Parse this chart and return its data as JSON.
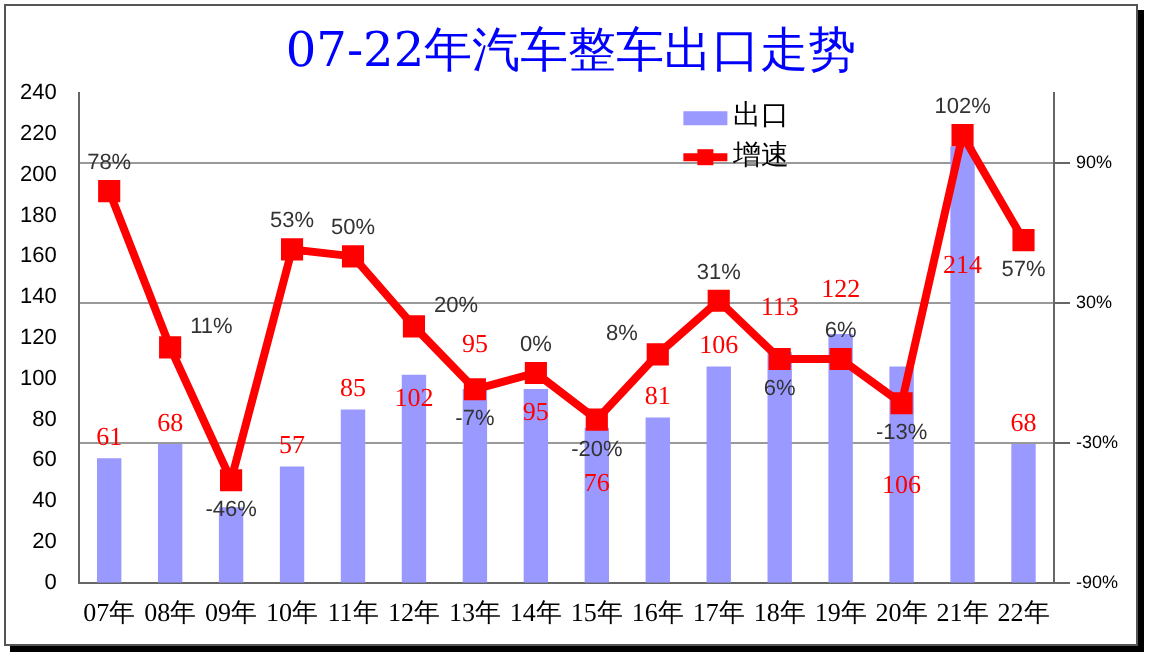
{
  "chart_data": {
    "type": "bar",
    "title": "07-22年汽车整车出口走势",
    "categories": [
      "07年",
      "08年",
      "09年",
      "10年",
      "11年",
      "12年",
      "13年",
      "14年",
      "15年",
      "16年",
      "17年",
      "18年",
      "19年",
      "20年",
      "21年",
      "22年"
    ],
    "series": [
      {
        "name": "出口",
        "color": "#9999ff",
        "values": [
          61,
          68,
          37,
          57,
          85,
          102,
          95,
          95,
          76,
          81,
          106,
          113,
          122,
          106,
          214,
          68
        ],
        "value_labels": [
          "61",
          "68",
          null,
          "57",
          "85",
          "102",
          "95",
          "95",
          "76",
          "81",
          "106",
          "113",
          "122",
          "106",
          "214",
          "68"
        ]
      },
      {
        "name": "增速",
        "type": "line",
        "axis": "y2",
        "color": "#ff0000",
        "values": [
          78,
          11,
          -46,
          53,
          50,
          20,
          -7,
          0,
          -20,
          8,
          31,
          6,
          6,
          -13,
          102,
          57
        ],
        "value_labels": [
          "78%",
          "11%",
          "-46%",
          "53%",
          "50%",
          "20%",
          "-7%",
          "0%",
          "-20%",
          "8%",
          "31%",
          "6%",
          "6%",
          "-13%",
          "102%",
          "57%"
        ]
      }
    ],
    "ylim": [
      0,
      240
    ],
    "yticks": [
      0,
      20,
      40,
      60,
      80,
      100,
      120,
      140,
      160,
      180,
      200,
      220,
      240
    ],
    "y2lim": [
      -90,
      120
    ],
    "y2ticks": [
      {
        "value": -90,
        "label": "-90%"
      },
      {
        "value": -30,
        "label": "-30%"
      },
      {
        "value": 30,
        "label": "30%"
      },
      {
        "value": 90,
        "label": "90%"
      }
    ],
    "grid": "y2",
    "legend": "top",
    "marker": "square"
  }
}
